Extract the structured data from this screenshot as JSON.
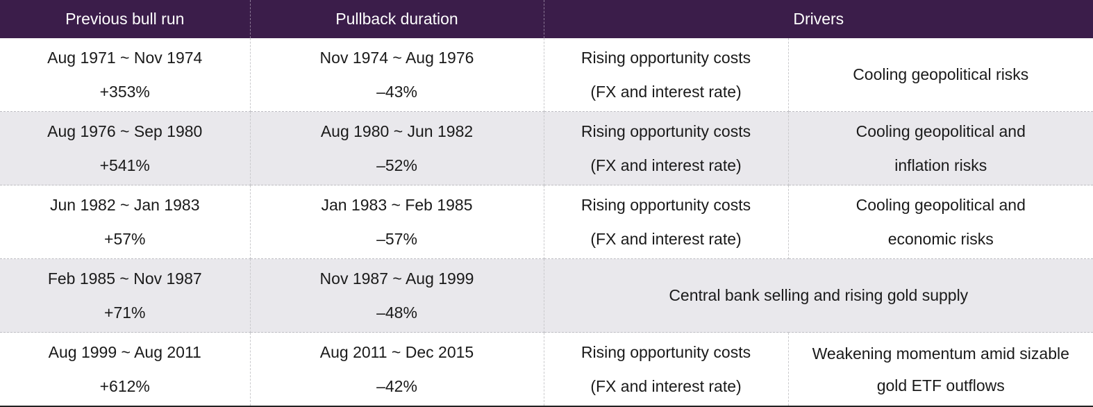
{
  "headers": {
    "previous_bull_run": "Previous bull run",
    "pullback_duration": "Pullback duration",
    "drivers": "Drivers"
  },
  "rows": [
    {
      "bull_period": "Aug 1971 ~ Nov 1974",
      "bull_gain": "+353%",
      "pullback_period": "Nov 1974 ~ Aug 1976",
      "pullback_change": "–43%",
      "driver_a_line1": "Rising opportunity costs",
      "driver_a_line2": "(FX and interest rate)",
      "driver_b": "Cooling geopolitical risks"
    },
    {
      "bull_period": "Aug 1976 ~ Sep 1980",
      "bull_gain": "+541%",
      "pullback_period": "Aug 1980 ~ Jun 1982",
      "pullback_change": "–52%",
      "driver_a_line1": "Rising opportunity costs",
      "driver_a_line2": "(FX and interest rate)",
      "driver_b_line1": "Cooling geopolitical and",
      "driver_b_line2": "inflation risks"
    },
    {
      "bull_period": "Jun 1982 ~ Jan 1983",
      "bull_gain": "+57%",
      "pullback_period": "Jan 1983 ~ Feb 1985",
      "pullback_change": "–57%",
      "driver_a_line1": "Rising opportunity costs",
      "driver_a_line2": "(FX and interest rate)",
      "driver_b_line1": "Cooling geopolitical and",
      "driver_b_line2": "economic risks"
    },
    {
      "bull_period": "Feb 1985 ~ Nov 1987",
      "bull_gain": "+71%",
      "pullback_period": "Nov 1987 ~ Aug 1999",
      "pullback_change": "–48%",
      "driver_combined": "Central bank selling and rising gold supply"
    },
    {
      "bull_period": "Aug 1999 ~ Aug 2011",
      "bull_gain": "+612%",
      "pullback_period": "Aug 2011 ~ Dec 2015",
      "pullback_change": "–42%",
      "driver_a_line1": "Rising opportunity costs",
      "driver_a_line2": "(FX and interest rate)",
      "driver_b_line1": "Weakening momentum amid sizable",
      "driver_b_line2": "gold ETF outflows"
    }
  ]
}
